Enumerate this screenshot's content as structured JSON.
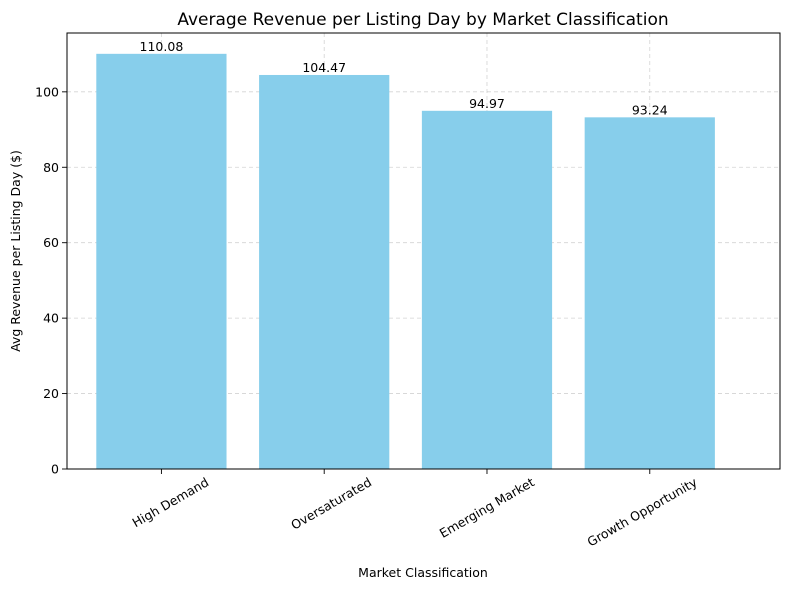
{
  "chart_data": {
    "type": "bar",
    "title": "Average Revenue per Listing Day by Market Classification",
    "xlabel": "Market Classification",
    "ylabel": "Avg Revenue per Listing Day ($)",
    "categories": [
      "High Demand",
      "Oversaturated",
      "Emerging Market",
      "Growth Opportunity"
    ],
    "values": [
      110.08,
      104.47,
      94.97,
      93.24
    ],
    "data_labels": [
      "110.08",
      "104.47",
      "94.97",
      "93.24"
    ],
    "y_ticks": [
      0,
      20,
      40,
      60,
      80,
      100
    ],
    "ylim": [
      0,
      115.6
    ],
    "bar_color": "#87CEEB",
    "grid": true,
    "x_tick_rotation_deg": 30
  }
}
